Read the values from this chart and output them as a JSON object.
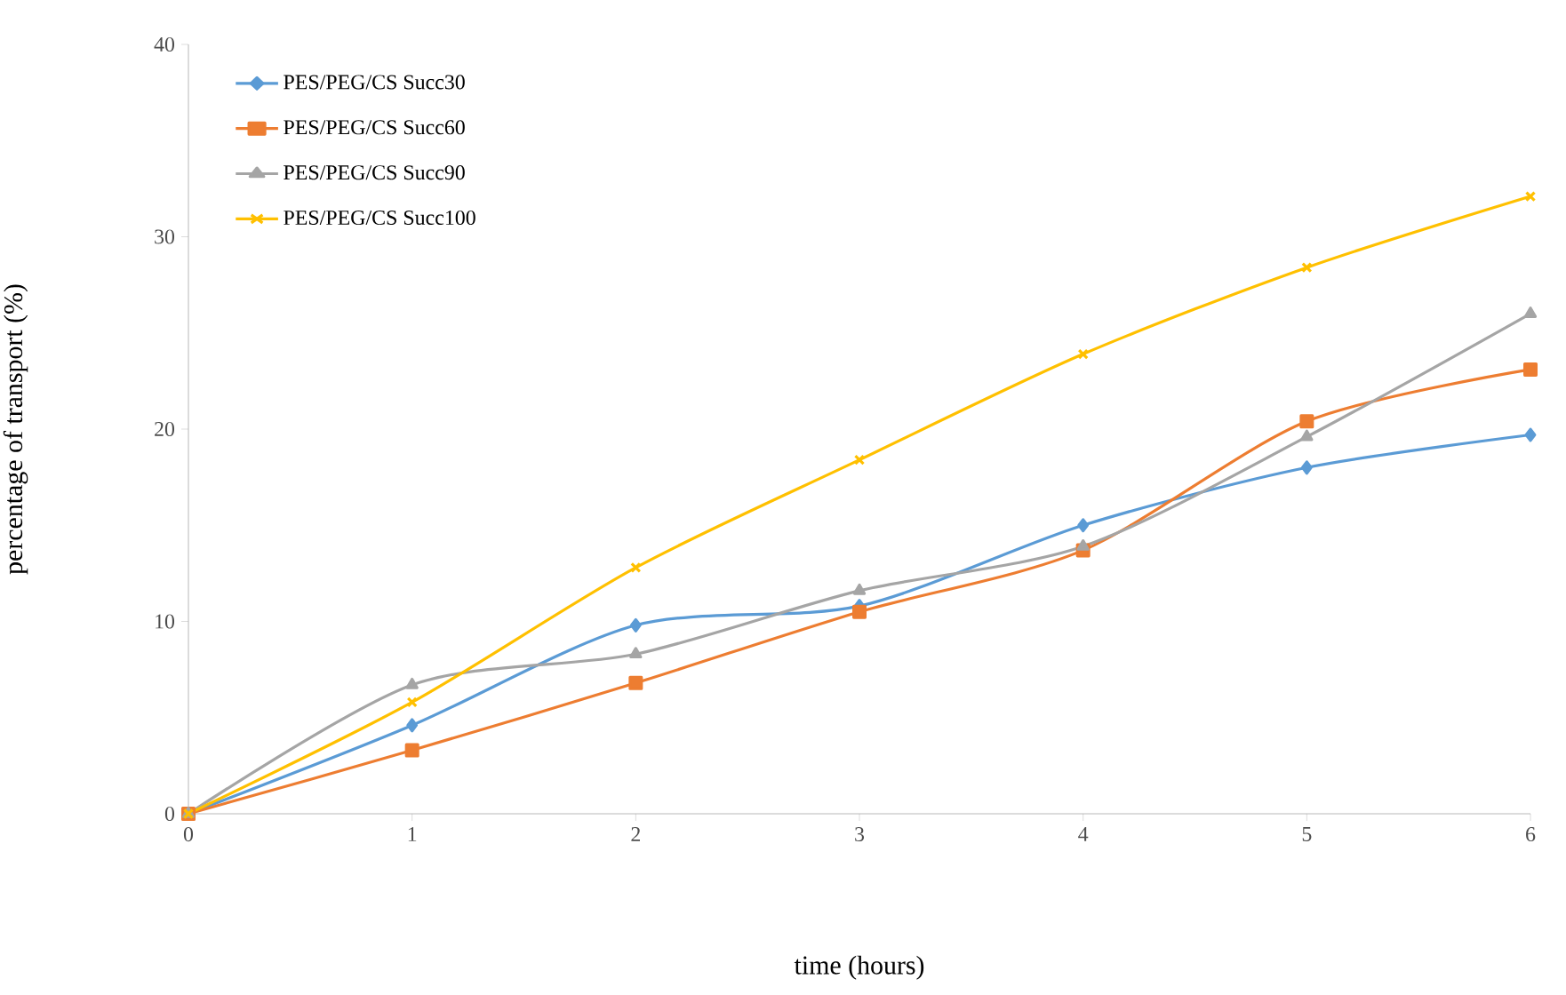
{
  "chart_data": {
    "type": "line",
    "xlabel": "time (hours)",
    "ylabel": "percentage of transport (%)",
    "x": [
      0,
      1,
      2,
      3,
      4,
      5,
      6
    ],
    "series": [
      {
        "name": "PES/PEG/CS Succ30",
        "color": "#5b9bd5",
        "marker": "diamond",
        "values": [
          0,
          4.6,
          9.8,
          10.8,
          15.0,
          18.0,
          19.7
        ]
      },
      {
        "name": "PES/PEG/CS Succ60",
        "color": "#ed7d31",
        "marker": "square",
        "values": [
          0,
          3.3,
          6.8,
          10.5,
          13.7,
          20.4,
          23.1
        ]
      },
      {
        "name": "PES/PEG/CS Succ90",
        "color": "#a5a5a5",
        "marker": "triangle",
        "values": [
          0,
          6.7,
          8.3,
          11.6,
          13.9,
          19.6,
          26.0
        ]
      },
      {
        "name": "PES/PEG/CS Succ100",
        "color": "#ffc000",
        "marker": "cross",
        "values": [
          0,
          5.8,
          12.8,
          18.4,
          23.9,
          28.4,
          32.1
        ]
      }
    ],
    "xlim": [
      0,
      6
    ],
    "ylim": [
      0,
      40
    ],
    "xticks": [
      0,
      1,
      2,
      3,
      4,
      5,
      6
    ],
    "yticks": [
      0,
      10,
      20,
      30,
      40
    ],
    "legend": "top left",
    "grid": false,
    "line_style": "solid"
  }
}
